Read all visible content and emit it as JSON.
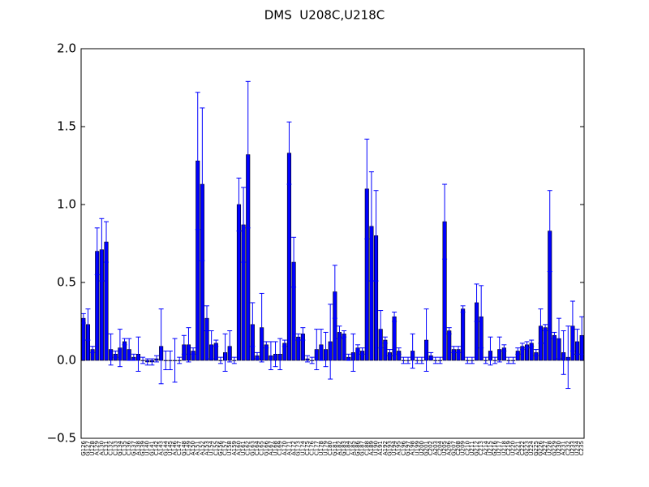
{
  "chart_data": {
    "type": "bar",
    "title": "DMS  U208C,U218C",
    "categories": [
      "G126",
      "G127",
      "U128",
      "A129",
      "A130",
      "C131",
      "C132",
      "C133",
      "G134",
      "C135",
      "C136",
      "G137",
      "A138",
      "G139",
      "U140",
      "G141",
      "C142",
      "A143",
      "G144",
      "U145",
      "A146",
      "C147",
      "G148",
      "C149",
      "A150",
      "A151",
      "A152",
      "A153",
      "U154",
      "C155",
      "G156",
      "C157",
      "U158",
      "A159",
      "A160",
      "U161",
      "C162",
      "G163",
      "C164",
      "C165",
      "G166",
      "A167",
      "U168",
      "C169",
      "A170",
      "A171",
      "A172",
      "G173",
      "U174",
      "C175",
      "C176",
      "C177",
      "U178",
      "U179",
      "C180",
      "G181",
      "A182",
      "G183",
      "C184",
      "A185",
      "G186",
      "G187",
      "C188",
      "A189",
      "U190",
      "A191",
      "A192",
      "G193",
      "U194",
      "A195",
      "C196",
      "G197",
      "A198",
      "U199",
      "U200",
      "G201",
      "C202",
      "A203",
      "C204",
      "U205",
      "A206",
      "G207",
      "C208",
      "U209",
      "C210",
      "U211",
      "G212",
      "C213",
      "A214",
      "U215",
      "G216",
      "U217",
      "U218",
      "C219",
      "U220",
      "A221",
      "C222",
      "G223",
      "U224",
      "G225",
      "G226",
      "A227",
      "U228",
      "G229",
      "U230",
      "A231",
      "C232",
      "U233",
      "U234",
      "C235"
    ],
    "values": [
      0.27,
      0.23,
      0.07,
      0.7,
      0.71,
      0.76,
      0.07,
      0.04,
      0.08,
      0.12,
      0.07,
      0.02,
      0.04,
      0.0,
      -0.01,
      -0.01,
      0.01,
      0.09,
      0.0,
      0.0,
      0.0,
      0.0,
      0.1,
      0.1,
      0.06,
      1.28,
      1.13,
      0.27,
      0.1,
      0.11,
      0.0,
      0.05,
      0.09,
      0.0,
      1.0,
      0.87,
      1.32,
      0.23,
      0.03,
      0.21,
      0.1,
      0.03,
      0.04,
      0.04,
      0.11,
      1.33,
      0.63,
      0.15,
      0.17,
      0.01,
      0.0,
      0.07,
      0.1,
      0.07,
      0.12,
      0.44,
      0.18,
      0.17,
      0.02,
      0.05,
      0.08,
      0.06,
      1.1,
      0.86,
      0.8,
      0.2,
      0.13,
      0.05,
      0.28,
      0.06,
      0.0,
      0.0,
      0.06,
      0.0,
      0.0,
      0.13,
      0.03,
      0.0,
      0.0,
      0.89,
      0.19,
      0.07,
      0.07,
      0.33,
      0.0,
      0.0,
      0.37,
      0.28,
      0.0,
      0.06,
      0.0,
      0.07,
      0.08,
      0.0,
      0.0,
      0.06,
      0.09,
      0.1,
      0.11,
      0.05,
      0.22,
      0.21,
      0.83,
      0.16,
      0.14,
      0.05,
      0.02,
      0.22,
      0.12,
      0.16
    ],
    "errors": [
      0.03,
      0.1,
      0.02,
      0.15,
      0.2,
      0.13,
      0.1,
      0.02,
      0.12,
      0.02,
      0.07,
      0.02,
      0.11,
      0.02,
      0.02,
      0.02,
      0.02,
      0.24,
      0.06,
      0.06,
      0.14,
      0.02,
      0.06,
      0.11,
      0.02,
      0.44,
      0.49,
      0.08,
      0.09,
      0.02,
      0.02,
      0.12,
      0.1,
      0.02,
      0.17,
      0.24,
      0.47,
      0.14,
      0.02,
      0.22,
      0.02,
      0.09,
      0.08,
      0.1,
      0.02,
      0.2,
      0.16,
      0.02,
      0.04,
      0.02,
      0.02,
      0.13,
      0.1,
      0.11,
      0.24,
      0.17,
      0.04,
      0.02,
      0.02,
      0.12,
      0.02,
      0.02,
      0.32,
      0.35,
      0.29,
      0.12,
      0.02,
      0.02,
      0.03,
      0.02,
      0.02,
      0.02,
      0.11,
      0.02,
      0.02,
      0.2,
      0.02,
      0.02,
      0.02,
      0.24,
      0.02,
      0.02,
      0.02,
      0.02,
      0.02,
      0.02,
      0.12,
      0.2,
      0.02,
      0.09,
      0.02,
      0.08,
      0.02,
      0.02,
      0.02,
      0.02,
      0.02,
      0.02,
      0.02,
      0.02,
      0.11,
      0.02,
      0.26,
      0.02,
      0.13,
      0.14,
      0.2,
      0.16,
      0.08,
      0.12
    ],
    "color": "#0000ff",
    "ylim": [
      -0.5,
      2.0
    ],
    "yticks": [
      {
        "value": -0.5,
        "label": "−0.5"
      },
      {
        "value": 0,
        "label": "0.0"
      },
      {
        "value": 0.5,
        "label": "0.5"
      },
      {
        "value": 1.0,
        "label": "1.0"
      },
      {
        "value": 1.5,
        "label": "1.5"
      },
      {
        "value": 2.0,
        "label": "2.0"
      }
    ]
  }
}
